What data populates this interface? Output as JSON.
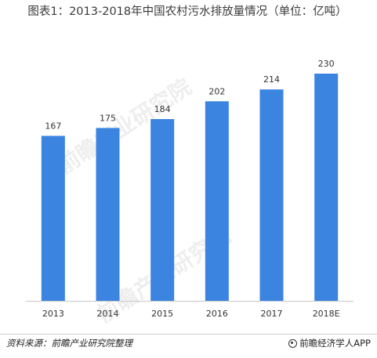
{
  "title": "图表1：2013-2018年中国农村污水排放量情况（单位：亿吨）",
  "chart_data": {
    "type": "bar",
    "title": "图表1：2013-2018年中国农村污水排放量情况（单位：亿吨）",
    "categories": [
      "2013",
      "2014",
      "2015",
      "2016",
      "2017",
      "2018E"
    ],
    "values": [
      167,
      175,
      184,
      202,
      214,
      230
    ],
    "data_labels": [
      "167",
      "175",
      "184",
      "202",
      "214",
      "230"
    ],
    "ylim": [
      0,
      230
    ],
    "grid": false,
    "legend": "none",
    "bar_color": "#3b84e0"
  },
  "footer": {
    "source": "资料来源：前瞻产业研究院整理",
    "brand": "前瞻经济学人APP"
  },
  "watermark": {
    "text": "前瞻产业研究院"
  }
}
